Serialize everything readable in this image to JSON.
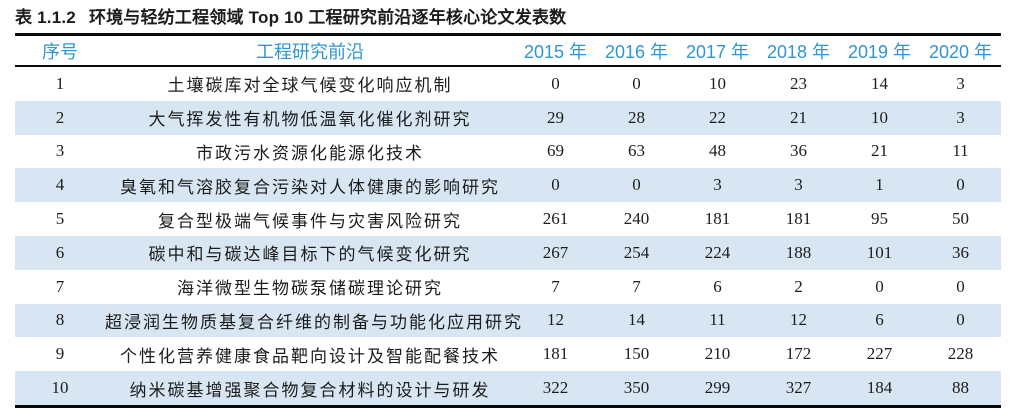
{
  "caption": {
    "label": "表 1.1.2",
    "text": "环境与轻纺工程领域 Top 10 工程研究前沿逐年核心论文发表数"
  },
  "colors": {
    "header_text": "#2e96d3",
    "row_shade": "#d8e6f3",
    "rule": "#0a0a0a",
    "body_text": "#1c1c1c"
  },
  "chart_data": {
    "type": "table",
    "title": "表 1.1.2 环境与轻纺工程领域 Top 10 工程研究前沿逐年核心论文发表数",
    "headers": [
      "序号",
      "工程研究前沿",
      "2015 年",
      "2016 年",
      "2017 年",
      "2018 年",
      "2019 年",
      "2020 年"
    ],
    "rows": [
      {
        "index": "1",
        "front": "土壤碳库对全球气候变化响应机制",
        "values": [
          0,
          0,
          10,
          23,
          14,
          3
        ]
      },
      {
        "index": "2",
        "front": "大气挥发性有机物低温氧化催化剂研究",
        "values": [
          29,
          28,
          22,
          21,
          10,
          3
        ]
      },
      {
        "index": "3",
        "front": "市政污水资源化能源化技术",
        "values": [
          69,
          63,
          48,
          36,
          21,
          11
        ]
      },
      {
        "index": "4",
        "front": "臭氧和气溶胶复合污染对人体健康的影响研究",
        "values": [
          0,
          0,
          3,
          3,
          1,
          0
        ]
      },
      {
        "index": "5",
        "front": "复合型极端气候事件与灾害风险研究",
        "values": [
          261,
          240,
          181,
          181,
          95,
          50
        ]
      },
      {
        "index": "6",
        "front": "碳中和与碳达峰目标下的气候变化研究",
        "values": [
          267,
          254,
          224,
          188,
          101,
          36
        ]
      },
      {
        "index": "7",
        "front": "海洋微型生物碳泵储碳理论研究",
        "values": [
          7,
          7,
          6,
          2,
          0,
          0
        ]
      },
      {
        "index": "8",
        "front": "超浸润生物质基复合纤维的制备与功能化应用研究",
        "values": [
          12,
          14,
          11,
          12,
          6,
          0
        ]
      },
      {
        "index": "9",
        "front": "个性化营养健康食品靶向设计及智能配餐技术",
        "values": [
          181,
          150,
          210,
          172,
          227,
          228
        ]
      },
      {
        "index": "10",
        "front": "纳米碳基增强聚合物复合材料的设计与研发",
        "values": [
          322,
          350,
          299,
          327,
          184,
          88
        ]
      }
    ]
  }
}
